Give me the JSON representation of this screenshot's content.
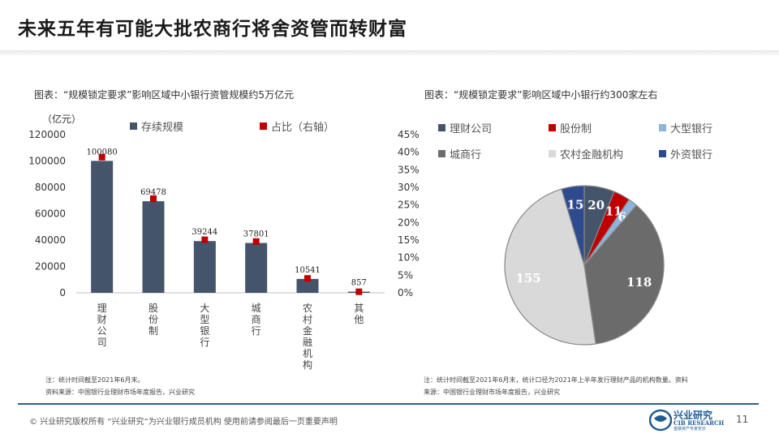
{
  "title": "未来五年有可能大批农商行将舍资管而转财富",
  "left_caption": "图表：“规模锁定要求”影响区域中小银行资管规模约5万亿元",
  "right_caption": "图表：“规模锁定要求”影响区域中小银行约300家左右",
  "left_unit": "（亿元）",
  "colors": {
    "bar": "#44546a",
    "marker": "#c00000",
    "accent": "#1f5c96"
  },
  "chart_data": [
    {
      "type": "bar",
      "categories": [
        "理财公司",
        "股份制",
        "大型银行",
        "城商行",
        "农村金融机构",
        "其他"
      ],
      "series": [
        {
          "name": "存续规模",
          "values": [
            100080,
            69478,
            39244,
            37801,
            10541,
            857
          ],
          "axis": "left"
        },
        {
          "name": "占比（右轴）",
          "values": [
            38.6,
            26.8,
            15.1,
            14.6,
            4.1,
            0.3
          ],
          "axis": "right",
          "marker": "square"
        }
      ],
      "data_labels": [
        "100080",
        "69478",
        "39244",
        "37801",
        "10541",
        "857"
      ],
      "ylim": [
        0,
        120000
      ],
      "yticks": [
        "0",
        "20000",
        "40000",
        "60000",
        "80000",
        "100000",
        "120000"
      ],
      "y2lim": [
        0,
        45
      ],
      "y2ticks": [
        "0%",
        "5%",
        "10%",
        "15%",
        "20%",
        "25%",
        "30%",
        "35%",
        "40%",
        "45%"
      ],
      "legend": "top",
      "grid": false
    },
    {
      "type": "pie",
      "labels": [
        "理财公司",
        "股份制",
        "大型银行",
        "城商行",
        "农村金融机构",
        "外资银行"
      ],
      "values": [
        20,
        11,
        6,
        118,
        155,
        15
      ],
      "colors": [
        "#44546a",
        "#c00000",
        "#8fb4d9",
        "#6b6b6b",
        "#d9d9d9",
        "#2e4a8f"
      ],
      "legend": "top"
    }
  ],
  "notes_left": [
    "注：统计时间截至2021年6月末。",
    "资料来源：中国银行业理财市场年度报告，兴业研究"
  ],
  "notes_right": [
    "注：统计时间截至2021年6月末，统计口径为2021年上半年发行理财产品的机构数量。资料",
    "来源：中国银行业理财市场年度报告，兴业研究"
  ],
  "footer": "©  兴业研究版权所有    “兴业研究”为兴业银行成员机构    使用前请参阅最后一页重要声明",
  "logo": {
    "cn": "兴业研究",
    "en": "CIB RESEARCH",
    "tag": "金融资产专家定价"
  },
  "page_number": "11"
}
